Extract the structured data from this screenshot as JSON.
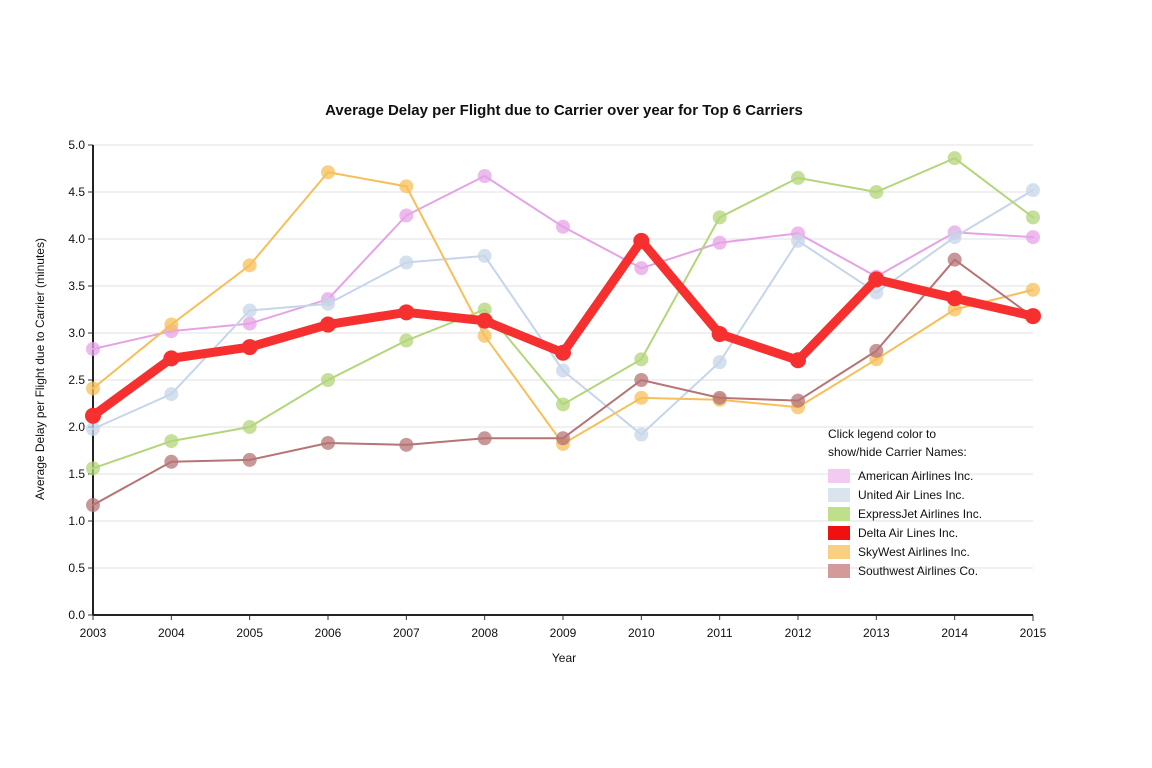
{
  "chart_data": {
    "type": "line",
    "title": "Average Delay per Flight due to Carrier over year for Top 6 Carriers",
    "xlabel": "Year",
    "ylabel": "Average Delay per Flight due to Carrier (minutes)",
    "ylim": [
      0,
      5
    ],
    "yticks": [
      "0.0",
      "0.5",
      "1.0",
      "1.5",
      "2.0",
      "2.5",
      "3.0",
      "3.5",
      "4.0",
      "4.5",
      "5.0"
    ],
    "x": [
      "2003",
      "2004",
      "2005",
      "2006",
      "2007",
      "2008",
      "2009",
      "2010",
      "2011",
      "2012",
      "2013",
      "2014",
      "2015"
    ],
    "grid": "horizontal",
    "legend_position": "bottom-right",
    "legend_title": [
      "Click legend color to",
      "show/hide Carrier Names:"
    ],
    "series": [
      {
        "name": "American Airlines Inc.",
        "color": "#e5a3e5",
        "emphasis": false,
        "values": [
          2.83,
          3.02,
          3.1,
          3.36,
          4.25,
          4.67,
          4.13,
          3.69,
          3.96,
          4.06,
          3.6,
          4.07,
          4.02
        ]
      },
      {
        "name": "United Air Lines Inc.",
        "color": "#c7d5ea",
        "emphasis": false,
        "values": [
          1.98,
          2.35,
          3.24,
          3.31,
          3.75,
          3.82,
          2.6,
          1.92,
          2.69,
          3.98,
          3.43,
          4.02,
          4.52
        ]
      },
      {
        "name": "ExpressJet Airlines Inc.",
        "color": "#b3d67a",
        "emphasis": false,
        "values": [
          1.56,
          1.85,
          2.0,
          2.5,
          2.92,
          3.25,
          2.24,
          2.72,
          4.23,
          4.65,
          4.5,
          4.86,
          4.23
        ]
      },
      {
        "name": "Delta Air Lines Inc.",
        "color": "#f5302f",
        "emphasis": true,
        "values": [
          2.12,
          2.73,
          2.85,
          3.09,
          3.22,
          3.13,
          2.79,
          3.98,
          2.99,
          2.71,
          3.57,
          3.37,
          3.18
        ]
      },
      {
        "name": "SkyWest Airlines Inc.",
        "color": "#f7bf5a",
        "emphasis": false,
        "values": [
          2.41,
          3.09,
          3.72,
          4.71,
          4.56,
          2.97,
          1.82,
          2.31,
          2.29,
          2.21,
          2.72,
          3.25,
          3.46
        ]
      },
      {
        "name": "Southwest Airlines Co.",
        "color": "#b67475",
        "emphasis": false,
        "values": [
          1.17,
          1.63,
          1.65,
          1.83,
          1.81,
          1.88,
          1.88,
          2.5,
          2.31,
          2.28,
          2.81,
          3.78,
          3.17
        ]
      }
    ]
  },
  "legend_swatch_colors": [
    "#f2caf2",
    "#dae4ef",
    "#bfe08a",
    "#f01010",
    "#f9cf80",
    "#d49a9a"
  ]
}
